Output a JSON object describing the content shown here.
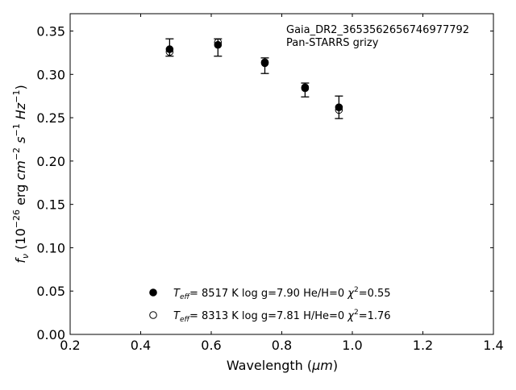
{
  "chart_data": {
    "type": "scatter",
    "title": "",
    "annotation_lines": [
      "Gaia_DR2_3653562656746977792",
      "Pan-STARRS grizy"
    ],
    "xlabel_prefix": "Wavelength (",
    "xlabel_unit": "μm",
    "xlabel_suffix": ")",
    "ylabel": "f_ν (10^−26 erg cm^−2 s^−1 Hz^−1)",
    "xlim": [
      0.2,
      1.4
    ],
    "ylim": [
      0.0,
      0.37
    ],
    "xticks": [
      "0.2",
      "0.4",
      "0.6",
      "0.8",
      "1.0",
      "1.2",
      "1.4"
    ],
    "xtick_values": [
      0.2,
      0.4,
      0.6,
      0.8,
      1.0,
      1.2,
      1.4
    ],
    "yticks": [
      "0.00",
      "0.05",
      "0.10",
      "0.15",
      "0.20",
      "0.25",
      "0.30",
      "0.35"
    ],
    "ytick_values": [
      0.0,
      0.05,
      0.1,
      0.15,
      0.2,
      0.25,
      0.3,
      0.35
    ],
    "grid": false,
    "legend_position": "bottom-center",
    "observed": {
      "x": [
        0.482,
        0.619,
        0.752,
        0.866,
        0.962
      ],
      "y": [
        0.331,
        0.331,
        0.31,
        0.282,
        0.262
      ],
      "err": [
        0.01,
        0.01,
        0.009,
        0.008,
        0.013
      ]
    },
    "series": [
      {
        "name": "T_eff=  8517 K  log g=7.90  He/H=0  χ²=0.55",
        "marker": "filled-circle",
        "x": [
          0.482,
          0.619,
          0.752,
          0.866,
          0.962
        ],
        "y": [
          0.329,
          0.334,
          0.313,
          0.285,
          0.262
        ]
      },
      {
        "name": "T_eff=  8313 K  log g=7.81  H/He=0  χ²=1.76",
        "marker": "open-circle",
        "x": [
          0.482,
          0.619,
          0.752,
          0.866,
          0.962
        ],
        "y": [
          0.326,
          0.337,
          0.314,
          0.284,
          0.259
        ]
      }
    ],
    "legend": [
      {
        "pre": "=  8517 K  log g=7.90  He/H=0  ",
        "chi": "=0.55"
      },
      {
        "pre": "=  8313 K  log g=7.81  H/He=0  ",
        "chi": "=1.76"
      }
    ]
  }
}
